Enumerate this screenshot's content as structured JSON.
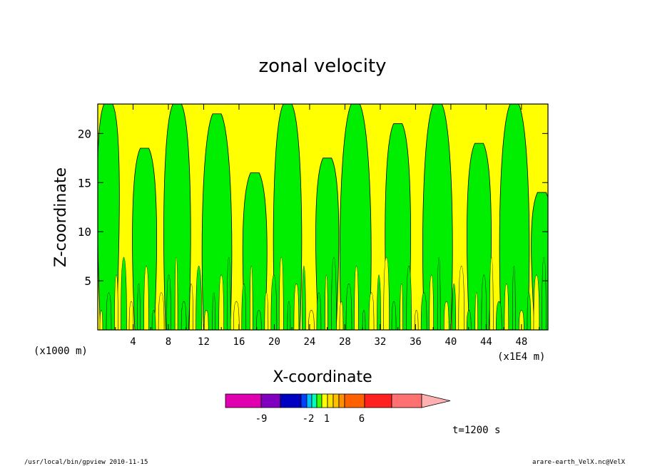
{
  "chart_data": {
    "type": "heatmap",
    "title": "zonal velocity",
    "xlabel": "X-coordinate",
    "ylabel": "Z-coordinate",
    "x_unit_left": "(x1000 m)",
    "x_unit_right": "(x1E4 m)",
    "xlim": [
      0,
      51
    ],
    "ylim": [
      0,
      23
    ],
    "x_ticks": [
      "4",
      "8",
      "12",
      "16",
      "20",
      "24",
      "28",
      "32",
      "36",
      "40",
      "44",
      "48"
    ],
    "y_ticks": [
      "5",
      "10",
      "15",
      "20"
    ],
    "fill_colors": {
      "positive": "#ffff00",
      "negative": "#00ee00"
    },
    "contour_line_color": "#000000",
    "colorbar": {
      "segments": [
        {
          "color": "#e000b0"
        },
        {
          "color": "#8000c0"
        },
        {
          "color": "#0000c0"
        },
        {
          "color": "#0040ff"
        },
        {
          "color": "#00c0ff"
        },
        {
          "color": "#00ffb0"
        },
        {
          "color": "#40ff00"
        },
        {
          "color": "#ffff00"
        },
        {
          "color": "#ffe000"
        },
        {
          "color": "#ffc000"
        },
        {
          "color": "#ff9000"
        },
        {
          "color": "#ff6000"
        },
        {
          "color": "#ff2020"
        },
        {
          "color": "#ff7070"
        },
        {
          "color": "#ffb0b0"
        }
      ],
      "labels": [
        "-9",
        "-2",
        "1",
        "6"
      ]
    },
    "time_label": "t=1200 s"
  },
  "footer": {
    "left": "/usr/local/bin/gpview  2010-11-15",
    "right": "arare-earth_VelX.nc@VelX"
  }
}
